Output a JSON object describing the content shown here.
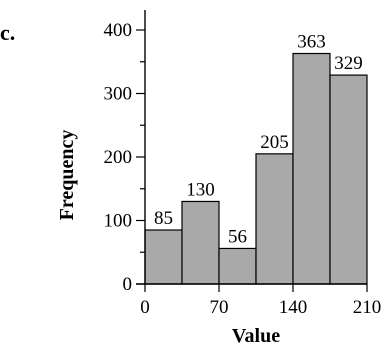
{
  "panel_label": "c.",
  "chart_data": {
    "type": "bar",
    "subtype": "histogram",
    "bins": [
      [
        0,
        35
      ],
      [
        35,
        70
      ],
      [
        70,
        105
      ],
      [
        105,
        140
      ],
      [
        140,
        175
      ],
      [
        175,
        210
      ]
    ],
    "values": [
      85,
      130,
      56,
      205,
      363,
      329
    ],
    "data_labels": [
      "85",
      "130",
      "56",
      "205",
      "363",
      "329"
    ],
    "xlabel": "Value",
    "ylabel": "Frequency",
    "xlim": [
      0,
      210
    ],
    "ylim": [
      0,
      400
    ],
    "xticks": [
      0,
      70,
      140,
      210
    ],
    "xtick_labels": [
      "0",
      "70",
      "140",
      "210"
    ],
    "yticks": [
      0,
      100,
      200,
      300,
      400
    ],
    "ytick_labels": [
      "0",
      "100",
      "200",
      "300",
      "400"
    ],
    "y_minor_ticks": [
      50,
      150,
      250,
      350
    ],
    "grid": false,
    "bar_color": "#a9a9a9",
    "edge_color": "#000000"
  }
}
